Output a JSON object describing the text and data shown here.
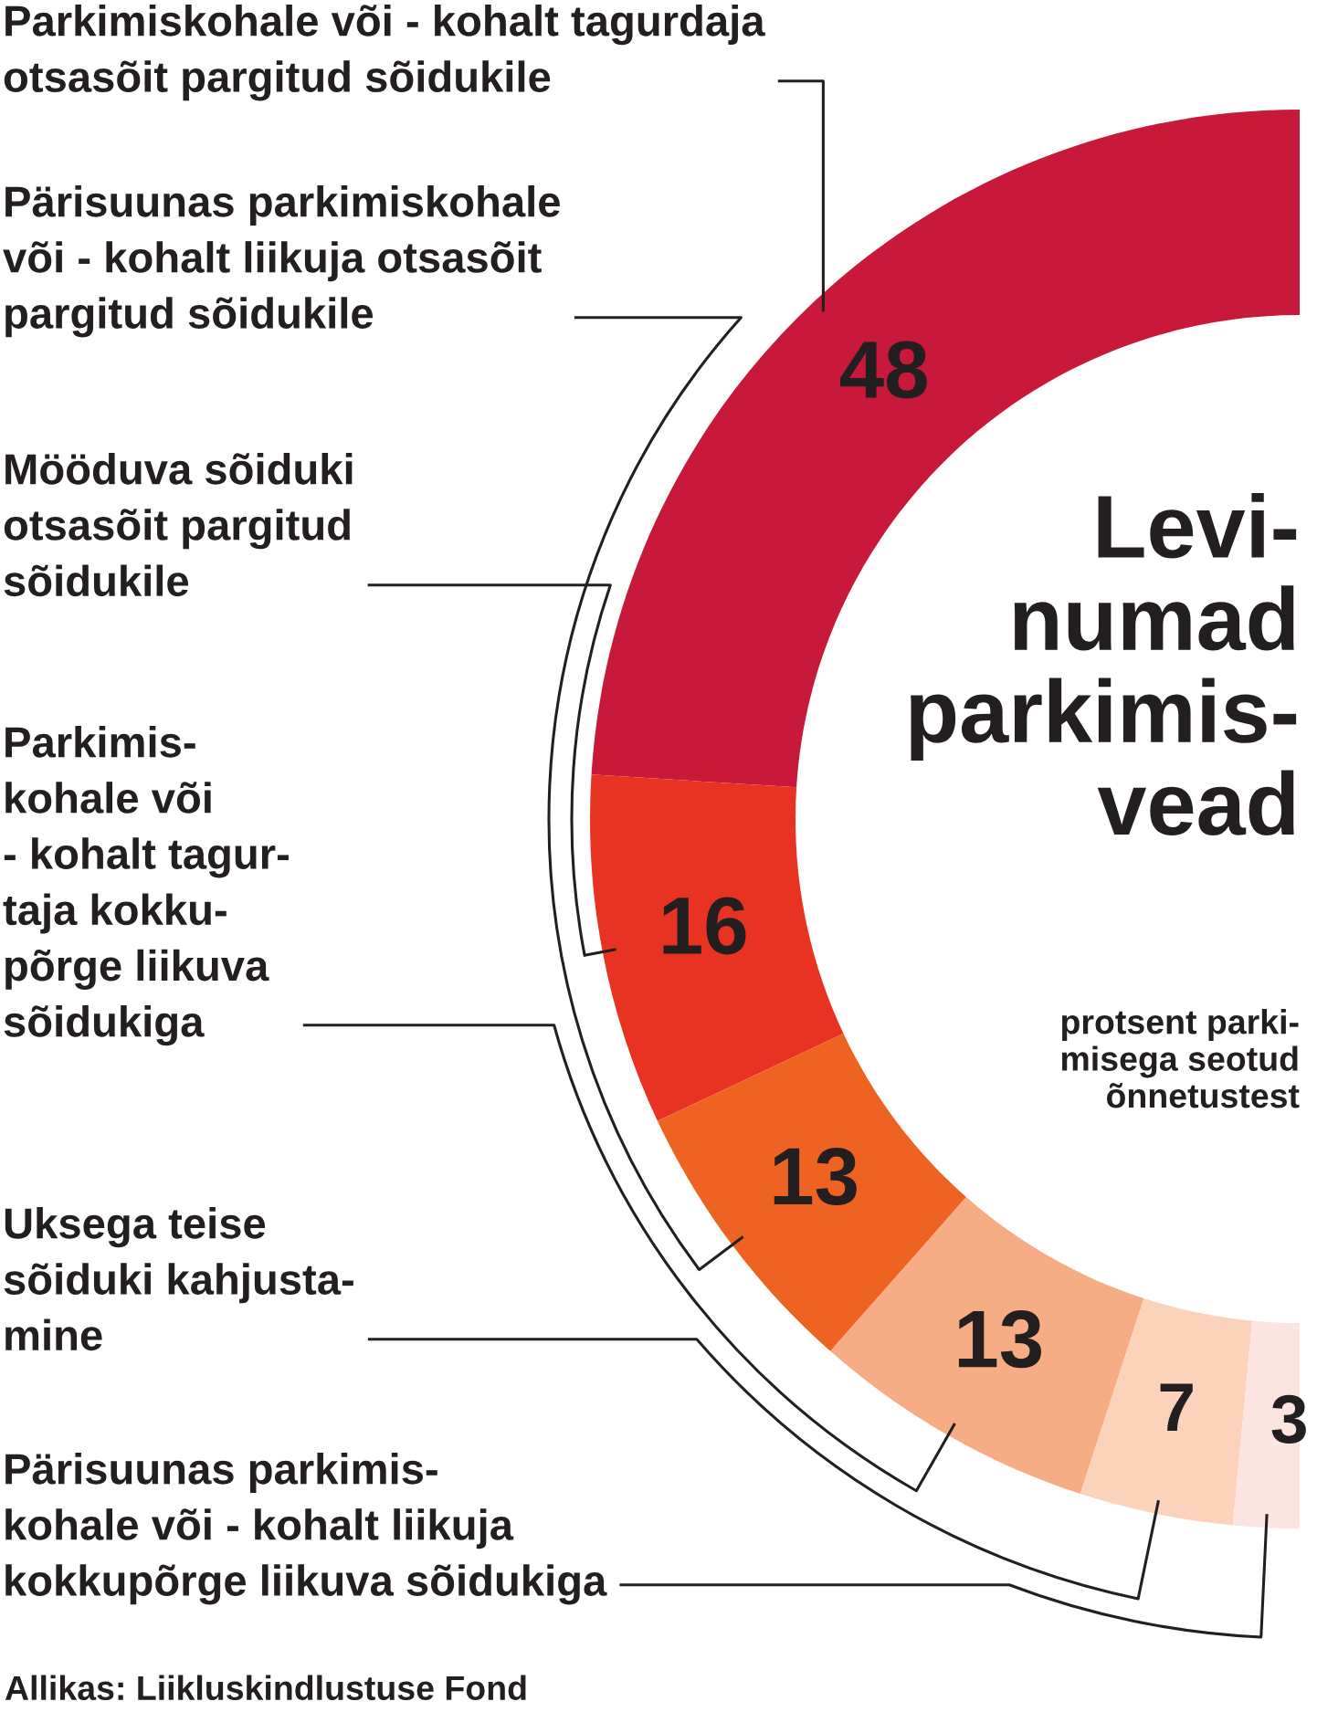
{
  "chart_data": {
    "type": "donut",
    "title": "Levi-\nnumad\nparkimis-\nvead",
    "subtitle": "protsent parki-\nmisega seotud\nõnnetustest",
    "categories": [
      "Parkimiskohale või - kohalt tagurdaja\notsasõit pargitud sõidukile",
      "Mööduva sõiduki\notsasõit pargitud\nsõidukile",
      "Pärisuunas parkimiskohale\nvõi - kohalt liikuja otsasõit\npargitud sõidukile",
      "Parkimis-\nkohale või\n- kohalt tagur-\ntaja kokku-\npõrge liikuva\nsõidukiga",
      "Uksega teise\nsõiduki kahjusta-\nmine",
      "Pärisuunas parkimis-\nkohale või - kohalt liikuja\nkokkupõrge liikuva sõidukiga"
    ],
    "values": [
      48,
      16,
      13,
      13,
      7,
      3
    ],
    "colors": [
      "#c8193a",
      "#e83323",
      "#ef6322",
      "#f6ac84",
      "#fbd3bb",
      "#fce4e1"
    ],
    "data_labels": true,
    "annotations": [
      "Allikas: Liikluskindlustuse Fond"
    ]
  }
}
